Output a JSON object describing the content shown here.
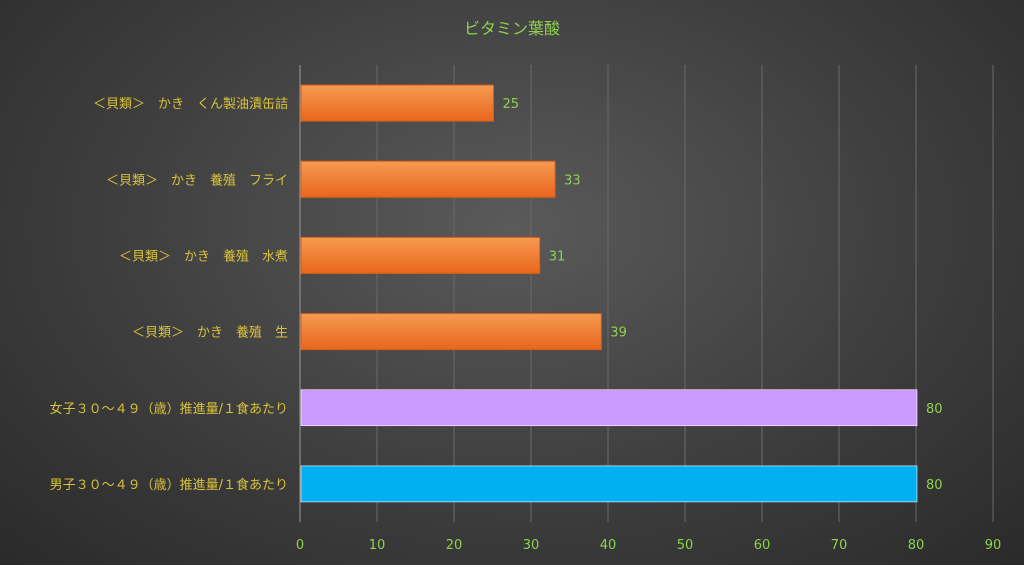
{
  "chart_data": {
    "type": "bar",
    "orientation": "horizontal",
    "title": "ビタミン葉酸",
    "categories": [
      "＜貝類＞　かき　くん製油漬缶詰",
      "＜貝類＞　かき　養殖　フライ",
      "＜貝類＞　かき　養殖　水煮",
      "＜貝類＞　かき　養殖　生",
      "女子３０～４９（歳）推進量/１食あたり",
      "男子３０～４９（歳）推進量/１食あたり"
    ],
    "values": [
      25,
      33,
      31,
      39,
      80,
      80
    ],
    "data_labels": [
      "25",
      "33",
      "31",
      "39",
      "80",
      "80"
    ],
    "bar_colors": [
      "#f07a2a",
      "#f07a2a",
      "#f07a2a",
      "#f07a2a",
      "#cc99ff",
      "#00b0f0"
    ],
    "xlim": [
      0,
      90
    ],
    "xticks": [
      "0",
      "10",
      "20",
      "30",
      "40",
      "50",
      "60",
      "70",
      "80",
      "90"
    ],
    "grid": true,
    "legend": "none"
  }
}
